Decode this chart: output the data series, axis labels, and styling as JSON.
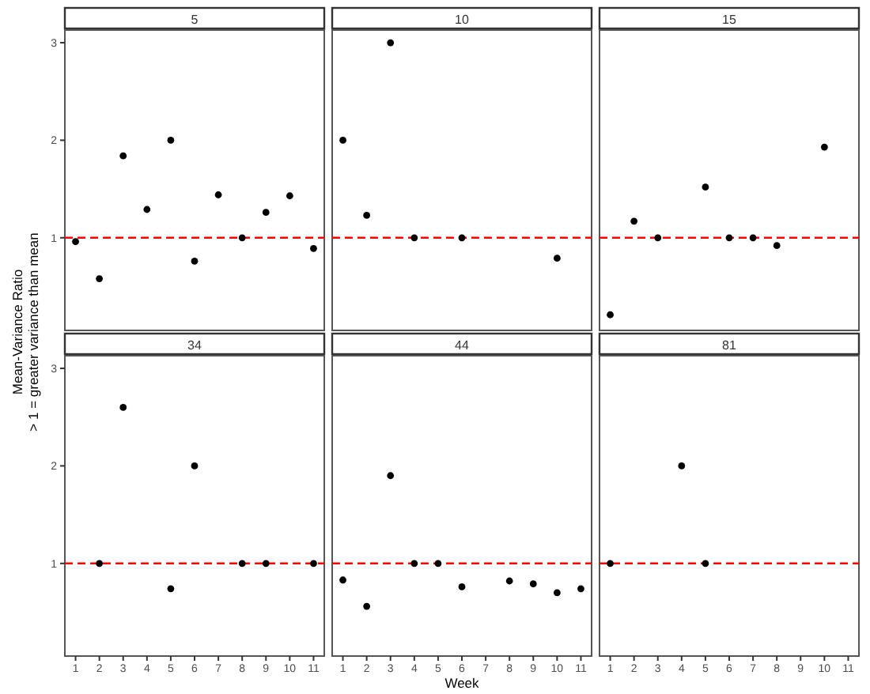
{
  "chart_data": [
    {
      "type": "scatter",
      "title": "5",
      "ylabel": "Mean-Variance Ratio\n> 1 = greater variance than mean",
      "xlim": [
        0.55,
        11.45
      ],
      "ylim": [
        0.05,
        3.13
      ],
      "yticks": [
        1,
        2,
        3
      ],
      "tick_labels": "y",
      "marker": "circle",
      "grid": false,
      "series": [
        {
          "color": "#000000",
          "x": [
            1,
            2,
            3,
            4,
            5,
            6,
            7,
            8,
            9,
            10,
            11
          ],
          "values": [
            0.96,
            0.58,
            1.84,
            1.29,
            2.0,
            0.76,
            1.44,
            1.0,
            1.26,
            1.43,
            0.89
          ]
        }
      ],
      "ref_lines": [
        {
          "axis": "y",
          "value": 1,
          "color": "#ff0000",
          "line_style": "dashed"
        }
      ]
    },
    {
      "type": "scatter",
      "title": "10",
      "xlim": [
        0.55,
        11.45
      ],
      "ylim": [
        0.05,
        3.13
      ],
      "tick_labels": false,
      "marker": "circle",
      "grid": false,
      "series": [
        {
          "color": "#000000",
          "x": [
            1,
            2,
            3,
            4,
            6,
            10
          ],
          "values": [
            2.0,
            1.23,
            3.0,
            1.0,
            1.0,
            0.79
          ]
        }
      ],
      "ref_lines": [
        {
          "axis": "y",
          "value": 1,
          "color": "#ff0000",
          "line_style": "dashed"
        }
      ]
    },
    {
      "type": "scatter",
      "title": "15",
      "xlim": [
        0.55,
        11.45
      ],
      "ylim": [
        0.05,
        3.13
      ],
      "tick_labels": false,
      "marker": "circle",
      "grid": false,
      "series": [
        {
          "color": "#000000",
          "x": [
            1,
            2,
            3,
            5,
            6,
            7,
            8,
            10
          ],
          "values": [
            0.21,
            1.17,
            1.0,
            1.52,
            1.0,
            1.0,
            0.92,
            1.93
          ]
        }
      ],
      "ref_lines": [
        {
          "axis": "y",
          "value": 1,
          "color": "#ff0000",
          "line_style": "dashed"
        }
      ]
    },
    {
      "type": "scatter",
      "title": "34",
      "xlim": [
        0.55,
        11.45
      ],
      "ylim": [
        0.05,
        3.13
      ],
      "xticks": [
        1,
        2,
        3,
        4,
        5,
        6,
        7,
        8,
        9,
        10,
        11
      ],
      "yticks": [
        1,
        2,
        3
      ],
      "marker": "circle",
      "grid": false,
      "series": [
        {
          "color": "#000000",
          "x": [
            2,
            3,
            5,
            6,
            8,
            9,
            11
          ],
          "values": [
            1.0,
            2.6,
            0.74,
            2.0,
            1.0,
            1.0,
            1.0
          ]
        }
      ],
      "ref_lines": [
        {
          "axis": "y",
          "value": 1,
          "color": "#ff0000",
          "line_style": "dashed"
        }
      ]
    },
    {
      "type": "scatter",
      "title": "44",
      "xlabel": "Week",
      "xlim": [
        0.55,
        11.45
      ],
      "ylim": [
        0.05,
        3.13
      ],
      "xticks": [
        1,
        2,
        3,
        4,
        5,
        6,
        7,
        8,
        9,
        10,
        11
      ],
      "tick_labels": "x",
      "marker": "circle",
      "grid": false,
      "series": [
        {
          "color": "#000000",
          "x": [
            1,
            2,
            3,
            4,
            5,
            6,
            8,
            9,
            10,
            11
          ],
          "values": [
            0.83,
            0.56,
            1.9,
            1.0,
            1.0,
            0.76,
            0.82,
            0.79,
            0.7,
            0.74
          ]
        }
      ],
      "ref_lines": [
        {
          "axis": "y",
          "value": 1,
          "color": "#ff0000",
          "line_style": "dashed"
        }
      ]
    },
    {
      "type": "scatter",
      "title": "81",
      "xlim": [
        0.55,
        11.45
      ],
      "ylim": [
        0.05,
        3.13
      ],
      "xticks": [
        1,
        2,
        3,
        4,
        5,
        6,
        7,
        8,
        9,
        10,
        11
      ],
      "tick_labels": "x",
      "marker": "circle",
      "grid": false,
      "series": [
        {
          "color": "#000000",
          "x": [
            1,
            4,
            5
          ],
          "values": [
            1.0,
            2.0,
            1.0
          ]
        }
      ],
      "ref_lines": [
        {
          "axis": "y",
          "value": 1,
          "color": "#ff0000",
          "line_style": "dashed"
        }
      ]
    }
  ]
}
